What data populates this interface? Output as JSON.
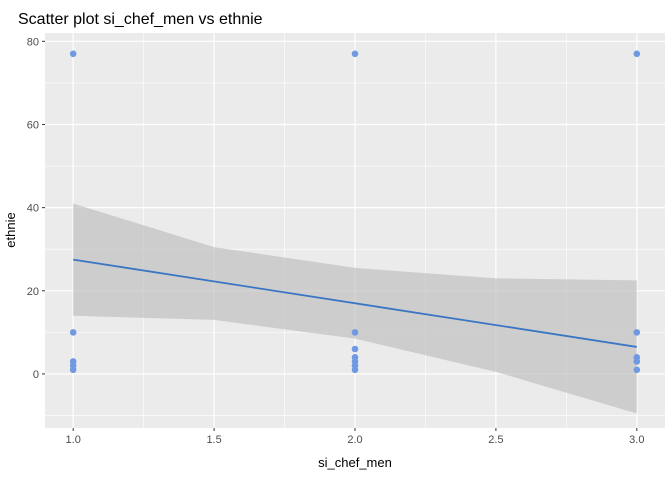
{
  "chart_data": {
    "type": "scatter",
    "title": "Scatter plot si_chef_men vs ethnie",
    "xlabel": "si_chef_men",
    "ylabel": "ethnie",
    "xlim": [
      0.9,
      3.1
    ],
    "ylim": [
      -13,
      82
    ],
    "xticks": [
      "1.0",
      "1.5",
      "2.0",
      "2.5",
      "3.0"
    ],
    "xtick_values": [
      1.0,
      1.5,
      2.0,
      2.5,
      3.0
    ],
    "yticks": [
      "0",
      "20",
      "40",
      "60",
      "80"
    ],
    "ytick_values": [
      0,
      20,
      40,
      60,
      80
    ],
    "grid": true,
    "points": [
      {
        "x": 1,
        "y": 77
      },
      {
        "x": 1,
        "y": 10
      },
      {
        "x": 1,
        "y": 3
      },
      {
        "x": 1,
        "y": 2
      },
      {
        "x": 1,
        "y": 1
      },
      {
        "x": 2,
        "y": 77
      },
      {
        "x": 2,
        "y": 10
      },
      {
        "x": 2,
        "y": 6
      },
      {
        "x": 2,
        "y": 4
      },
      {
        "x": 2,
        "y": 3
      },
      {
        "x": 2,
        "y": 2
      },
      {
        "x": 2,
        "y": 1
      },
      {
        "x": 3,
        "y": 77
      },
      {
        "x": 3,
        "y": 10
      },
      {
        "x": 3,
        "y": 4
      },
      {
        "x": 3,
        "y": 3
      },
      {
        "x": 3,
        "y": 1
      }
    ],
    "fit_line": {
      "x": [
        1,
        3
      ],
      "y": [
        27.5,
        6.5
      ]
    },
    "confidence_band": {
      "x": [
        1,
        1.5,
        2,
        2.5,
        3
      ],
      "upper": [
        41,
        30.5,
        25.5,
        23,
        22.5
      ],
      "lower": [
        14,
        13,
        8.5,
        0.5,
        -9.5
      ]
    },
    "colors": {
      "points": "#6f99e0",
      "line": "#3a76c4",
      "band": "#bdbdbd",
      "panel": "#ebebeb",
      "grid": "#ffffff"
    }
  }
}
